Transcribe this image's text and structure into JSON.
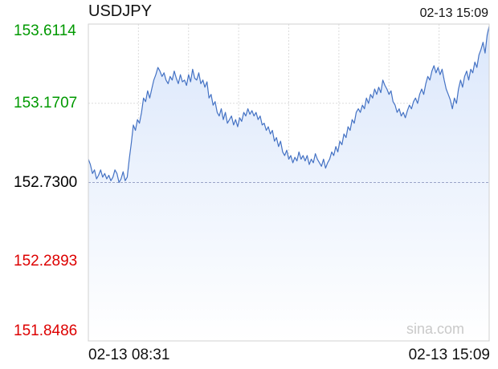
{
  "chart_data": {
    "type": "area",
    "title": "USDJPY",
    "timestamp": "02-13 15:09",
    "watermark": "sina.com",
    "x_labels": [
      "02-13 08:31",
      "02-13 15:09"
    ],
    "y_ticks": [
      {
        "value": "153.6114",
        "color": "#009900"
      },
      {
        "value": "153.1707",
        "color": "#009900"
      },
      {
        "value": "152.7300",
        "color": "#000000"
      },
      {
        "value": "152.2893",
        "color": "#dd0000"
      },
      {
        "value": "151.8486",
        "color": "#dd0000"
      }
    ],
    "ylim": [
      151.8486,
      153.6114
    ],
    "reference": 152.73,
    "line_color": "#4472c4",
    "fill_color": "#dbe7fb",
    "series": [
      {
        "values": [
          152.86,
          152.83,
          152.78,
          152.8,
          152.75,
          152.77,
          152.8,
          152.76,
          152.78,
          152.75,
          152.77,
          152.74,
          152.76,
          152.8,
          152.78,
          152.73,
          152.75,
          152.79,
          152.74,
          152.76,
          152.86,
          152.95,
          153.05,
          153.02,
          153.08,
          153.06,
          153.12,
          153.2,
          153.18,
          153.24,
          153.2,
          153.25,
          153.3,
          153.33,
          153.37,
          153.35,
          153.32,
          153.34,
          153.3,
          153.28,
          153.32,
          153.3,
          153.35,
          153.31,
          153.28,
          153.33,
          153.29,
          153.3,
          153.27,
          153.33,
          153.29,
          153.36,
          153.31,
          153.3,
          153.34,
          153.28,
          153.3,
          153.26,
          153.29,
          153.2,
          153.22,
          153.16,
          153.18,
          153.12,
          153.1,
          153.14,
          153.08,
          153.12,
          153.06,
          153.08,
          153.1,
          153.05,
          153.08,
          153.04,
          153.09,
          153.07,
          153.12,
          153.1,
          153.14,
          153.11,
          153.13,
          153.1,
          153.12,
          153.08,
          153.1,
          153.05,
          153.06,
          153.02,
          153.04,
          153.0,
          153.02,
          152.96,
          152.98,
          152.93,
          152.96,
          152.9,
          152.88,
          152.91,
          152.86,
          152.88,
          152.84,
          152.87,
          152.85,
          152.9,
          152.86,
          152.88,
          152.85,
          152.88,
          152.83,
          152.86,
          152.84,
          152.89,
          152.86,
          152.84,
          152.82,
          152.86,
          152.81,
          152.84,
          152.86,
          152.9,
          152.88,
          152.93,
          152.9,
          152.96,
          152.94,
          153.0,
          152.98,
          153.04,
          153.02,
          153.08,
          153.06,
          153.12,
          153.14,
          153.12,
          153.16,
          153.14,
          153.2,
          153.17,
          153.22,
          153.2,
          153.25,
          153.22,
          153.26,
          153.23,
          153.3,
          153.27,
          153.25,
          153.22,
          153.24,
          153.18,
          153.16,
          153.12,
          153.14,
          153.1,
          153.12,
          153.09,
          153.13,
          153.16,
          153.14,
          153.18,
          153.2,
          153.17,
          153.22,
          153.25,
          153.22,
          153.28,
          153.32,
          153.3,
          153.35,
          153.38,
          153.34,
          153.37,
          153.33,
          153.36,
          153.3,
          153.25,
          153.22,
          153.19,
          153.14,
          153.2,
          153.17,
          153.25,
          153.3,
          153.26,
          153.32,
          153.35,
          153.3,
          153.36,
          153.34,
          153.4,
          153.37,
          153.44,
          153.47,
          153.51,
          153.45,
          153.55,
          153.6
        ]
      }
    ]
  }
}
